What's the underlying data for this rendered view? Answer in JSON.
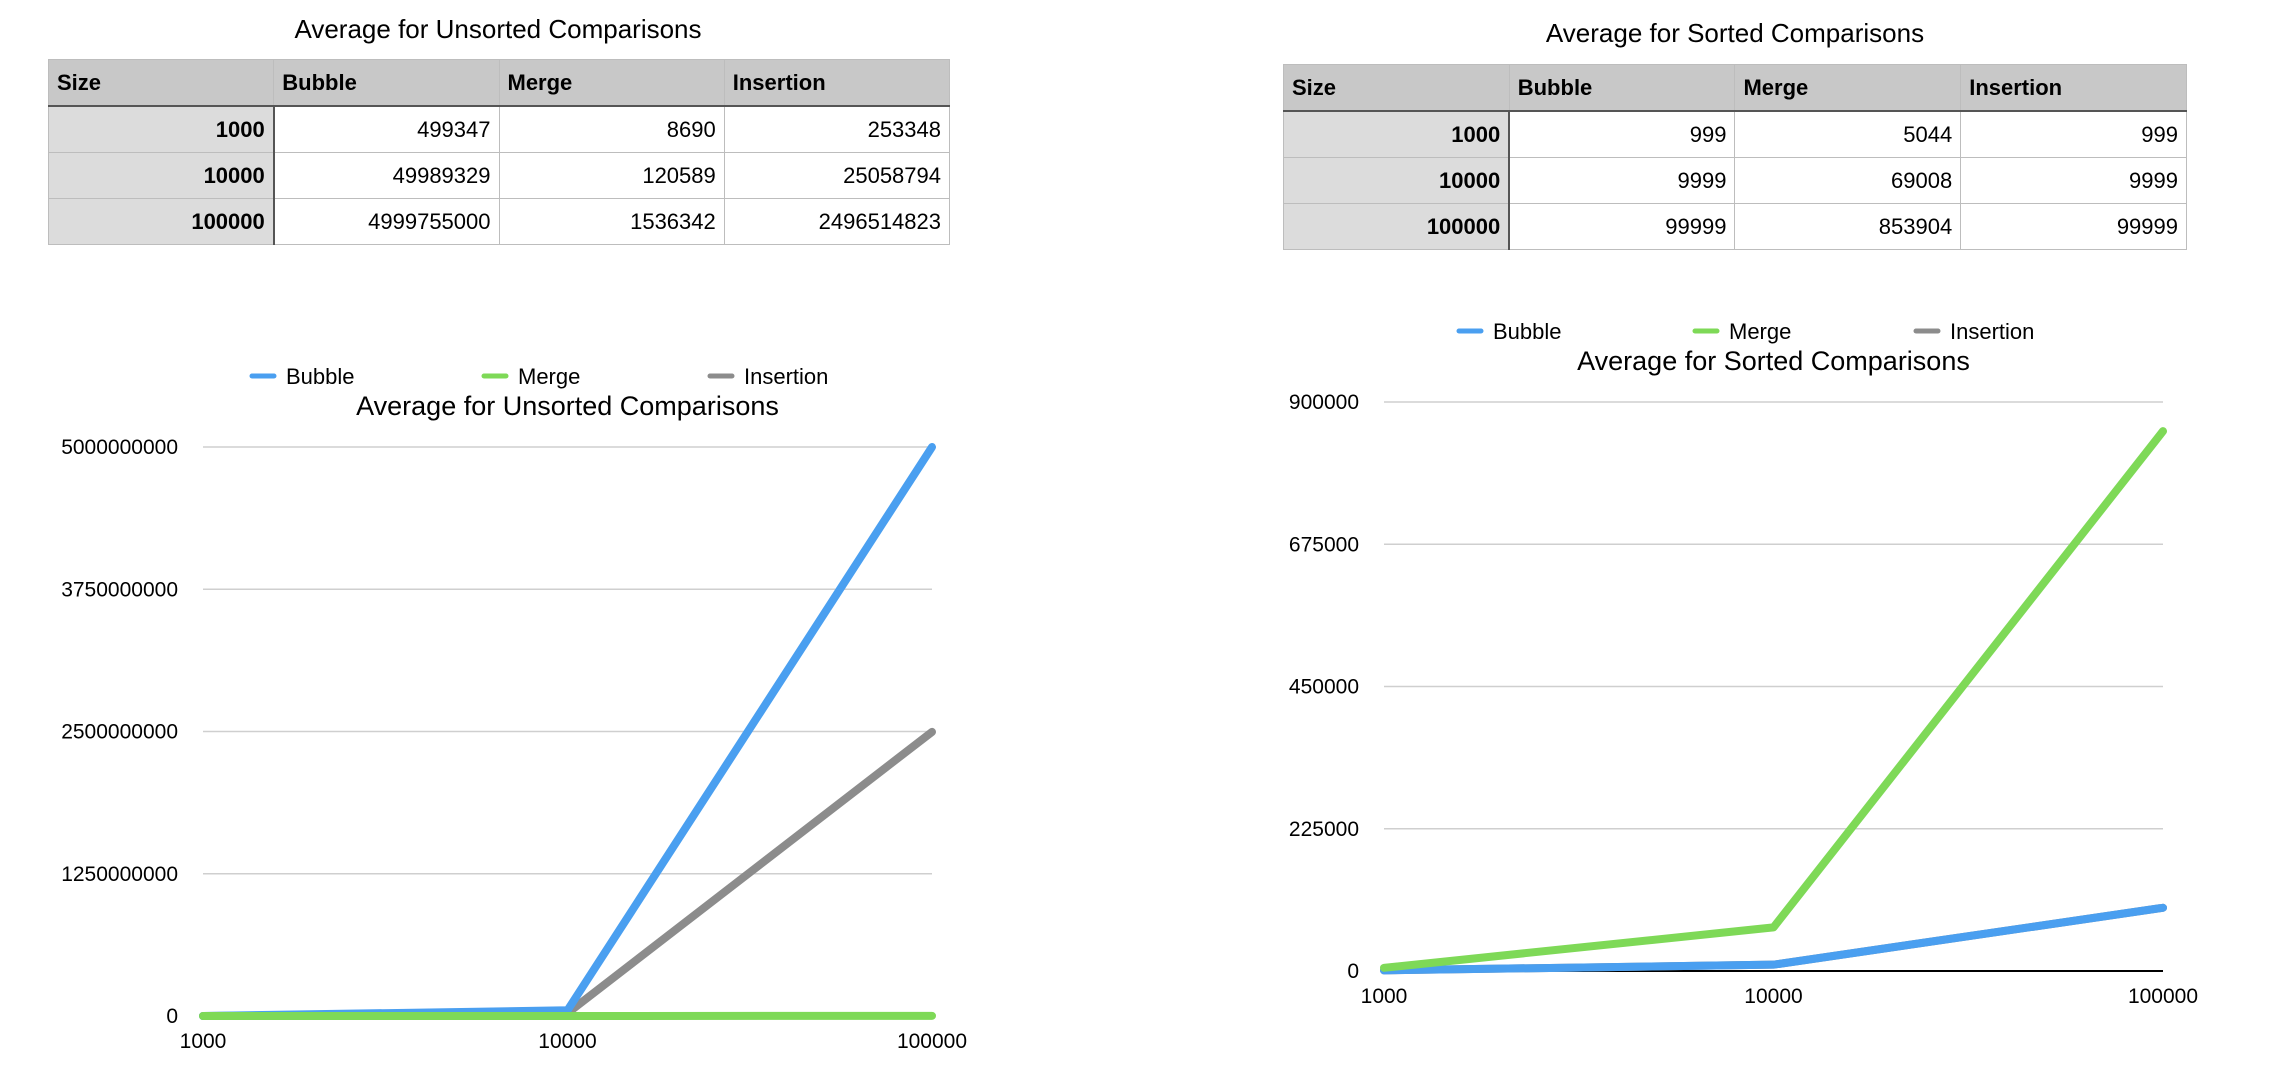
{
  "tables": [
    {
      "title": "Average for Unsorted Comparisons",
      "headers": [
        "Size",
        "Bubble",
        "Merge",
        "Insertion"
      ],
      "rows": [
        [
          "1000",
          "499347",
          "8690",
          "253348"
        ],
        [
          "10000",
          "49989329",
          "120589",
          "25058794"
        ],
        [
          "100000",
          "4999755000",
          "1536342",
          "2496514823"
        ]
      ]
    },
    {
      "title": "Average for Sorted Comparisons",
      "headers": [
        "Size",
        "Bubble",
        "Merge",
        "Insertion"
      ],
      "rows": [
        [
          "1000",
          "999",
          "5044",
          "999"
        ],
        [
          "10000",
          "9999",
          "69008",
          "9999"
        ],
        [
          "100000",
          "99999",
          "853904",
          "99999"
        ]
      ]
    }
  ],
  "chart_data": [
    {
      "type": "line",
      "title": "Average for Unsorted Comparisons",
      "categories": [
        "1000",
        "10000",
        "100000"
      ],
      "yticks": [
        "0",
        "1250000000",
        "2500000000",
        "3750000000",
        "5000000000"
      ],
      "ylim": [
        0,
        5000000000
      ],
      "legend_position": "top",
      "grid": true,
      "series": [
        {
          "name": "Bubble",
          "color": "#4a9ff0",
          "values": [
            499347,
            49989329,
            4999755000
          ]
        },
        {
          "name": "Merge",
          "color": "#7ed957",
          "values": [
            8690,
            120589,
            1536342
          ]
        },
        {
          "name": "Insertion",
          "color": "#8c8c8c",
          "values": [
            253348,
            25058794,
            2496514823
          ]
        }
      ]
    },
    {
      "type": "line",
      "title": "Average for Sorted Comparisons",
      "categories": [
        "1000",
        "10000",
        "100000"
      ],
      "yticks": [
        "0",
        "225000",
        "450000",
        "675000",
        "900000"
      ],
      "ylim": [
        0,
        900000
      ],
      "legend_position": "top",
      "grid": true,
      "series": [
        {
          "name": "Bubble",
          "color": "#4a9ff0",
          "values": [
            999,
            9999,
            99999
          ]
        },
        {
          "name": "Merge",
          "color": "#7ed957",
          "values": [
            5044,
            69008,
            853904
          ]
        },
        {
          "name": "Insertion",
          "color": "#8c8c8c",
          "values": [
            999,
            9999,
            99999
          ]
        }
      ]
    }
  ]
}
